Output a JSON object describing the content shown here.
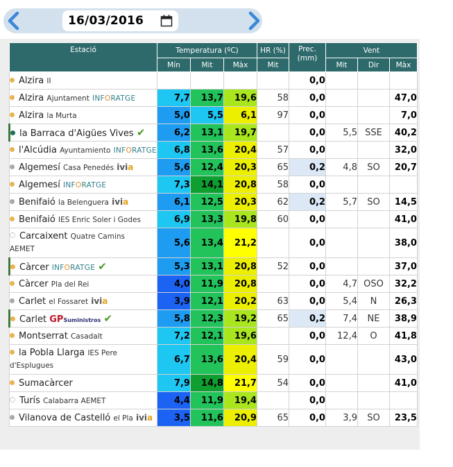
{
  "date": "16/03/2016",
  "header": {
    "estacio": "Estació",
    "temperatura": "Temperatura (ºC)",
    "hr": "HR (%)",
    "prec": "Prec.",
    "prec_unit": "(mm)",
    "vent": "Vent",
    "min": "Mín",
    "mit": "Mit",
    "max": "Màx",
    "hr_mit": "Mit",
    "vent_mit": "Mit",
    "vent_dir": "Dir",
    "vent_max": "Màx"
  },
  "colors": {
    "tmin_a": "#1ec6f2",
    "tmin_b": "#1e9cf2",
    "tmin_c": "#1c63f4",
    "tmit_a": "#22c35a",
    "tmit_b": "#0f9f30",
    "tmax_a": "#ffff00",
    "tmax_b": "#ecf000",
    "tmax_c": "#a9e61e",
    "header": "#2e6a6b"
  },
  "rows": [
    {
      "marker": "orange-dot",
      "name": "Alzira",
      "sub": "II",
      "brand": "",
      "chk": false,
      "hl": false,
      "tmin": "",
      "tmit": "",
      "tmax": "",
      "hr": "",
      "prec": "0,0",
      "pre_hi": false,
      "vmit": "",
      "vdir": "",
      "vmax": ""
    },
    {
      "marker": "orange-dot",
      "name": "Alzira",
      "sub": "Ajuntament",
      "brand": "inforatge",
      "chk": false,
      "hl": false,
      "tmin": "7,7",
      "tmit": "13,7",
      "tmax": "19,6",
      "hr": "58",
      "prec": "0,0",
      "pre_hi": false,
      "vmit": "",
      "vdir": "",
      "vmax": "47,0",
      "cmin": "a",
      "cmit": "a",
      "cmax": "c"
    },
    {
      "marker": "orange-dot",
      "name": "Alzira",
      "sub": "la Murta",
      "brand": "",
      "chk": false,
      "hl": false,
      "tmin": "5,0",
      "tmit": "5,5",
      "tmax": "6,1",
      "hr": "97",
      "prec": "0,0",
      "pre_hi": false,
      "vmit": "",
      "vdir": "",
      "vmax": "7,0",
      "cmin": "b",
      "cmit": "x",
      "cmax": "x"
    },
    {
      "marker": "teal-dot",
      "name": "la Barraca d'Aigües Vives",
      "sub": "",
      "brand": "",
      "chk": true,
      "hl": true,
      "tmin": "6,2",
      "tmit": "13,1",
      "tmax": "19,7",
      "hr": "",
      "prec": "0,0",
      "pre_hi": false,
      "vmit": "5,5",
      "vdir": "SSE",
      "vmax": "40,2",
      "cmin": "b",
      "cmit": "a",
      "cmax": "c"
    },
    {
      "marker": "orange-dot",
      "name": "l'Alcúdia",
      "sub": "Ayuntamiento",
      "brand": "inforatge",
      "chk": false,
      "hl": false,
      "tmin": "6,8",
      "tmit": "13,6",
      "tmax": "20,4",
      "hr": "57",
      "prec": "0,0",
      "pre_hi": false,
      "vmit": "",
      "vdir": "",
      "vmax": "32,0",
      "cmin": "a",
      "cmit": "a",
      "cmax": "b"
    },
    {
      "marker": "grey-dot",
      "name": "Algemesí",
      "sub": "Casa Penedés",
      "brand": "ivia",
      "chk": false,
      "hl": false,
      "tmin": "5,6",
      "tmit": "12,4",
      "tmax": "20,3",
      "hr": "65",
      "prec": "0,2",
      "pre_hi": true,
      "vmit": "4,8",
      "vdir": "SO",
      "vmax": "20,7",
      "cmin": "b",
      "cmit": "a",
      "cmax": "b"
    },
    {
      "marker": "orange-dot",
      "name": "Algemesí",
      "sub": "",
      "brand": "inforatge",
      "chk": false,
      "hl": false,
      "tmin": "7,3",
      "tmit": "14,1",
      "tmax": "20,8",
      "hr": "58",
      "prec": "0,0",
      "pre_hi": false,
      "vmit": "",
      "vdir": "",
      "vmax": "",
      "cmin": "a",
      "cmit": "b",
      "cmax": "b"
    },
    {
      "marker": "grey-dot",
      "name": "Benifaió",
      "sub": "la Belenguera",
      "brand": "ivia",
      "chk": false,
      "hl": false,
      "tmin": "6,1",
      "tmit": "12,5",
      "tmax": "20,3",
      "hr": "62",
      "prec": "0,2",
      "pre_hi": true,
      "vmit": "5,7",
      "vdir": "SO",
      "vmax": "14,5",
      "cmin": "b",
      "cmit": "a",
      "cmax": "b"
    },
    {
      "marker": "orange-dot",
      "name": "Benifaió",
      "sub": "IES Enric Soler i Godes",
      "brand": "",
      "chk": false,
      "hl": false,
      "tmin": "6,9",
      "tmit": "13,3",
      "tmax": "19,8",
      "hr": "60",
      "prec": "0,0",
      "pre_hi": false,
      "vmit": "",
      "vdir": "",
      "vmax": "41,0",
      "cmin": "a",
      "cmit": "a",
      "cmax": "c"
    },
    {
      "marker": "empty-dot",
      "name": "Carcaixent",
      "sub": "Quatre Camins",
      "sub2": "AEMET",
      "brand": "",
      "chk": false,
      "hl": false,
      "wrap": true,
      "tmin": "5,6",
      "tmit": "13,4",
      "tmax": "21,2",
      "hr": "",
      "prec": "0,0",
      "pre_hi": false,
      "vmit": "",
      "vdir": "",
      "vmax": "38,0",
      "cmin": "b",
      "cmit": "a",
      "cmax": "a"
    },
    {
      "marker": "orange-dot",
      "name": "Càrcer",
      "sub": "",
      "brand": "inforatge",
      "chk": true,
      "hl": true,
      "tmin": "5,3",
      "tmit": "13,1",
      "tmax": "20,8",
      "hr": "52",
      "prec": "0,0",
      "pre_hi": false,
      "vmit": "",
      "vdir": "",
      "vmax": "37,0",
      "cmin": "b",
      "cmit": "a",
      "cmax": "b"
    },
    {
      "marker": "orange-dot",
      "name": "Càrcer",
      "sub": "Pla del Rei",
      "brand": "",
      "chk": false,
      "hl": false,
      "tmin": "4,0",
      "tmit": "11,9",
      "tmax": "20,8",
      "hr": "",
      "prec": "0,0",
      "pre_hi": false,
      "vmit": "4,7",
      "vdir": "OSO",
      "vmax": "32,2",
      "cmin": "c",
      "cmit": "a",
      "cmax": "b"
    },
    {
      "marker": "grey-dot",
      "name": "Carlet",
      "sub": "el Fossaret",
      "brand": "ivia",
      "chk": false,
      "hl": false,
      "tmin": "3,9",
      "tmit": "12,1",
      "tmax": "20,2",
      "hr": "63",
      "prec": "0,0",
      "pre_hi": false,
      "vmit": "5,4",
      "vdir": "N",
      "vmax": "26,3",
      "cmin": "c",
      "cmit": "a",
      "cmax": "b"
    },
    {
      "marker": "orange-dot",
      "name": "Carlet",
      "sub": "",
      "brand": "gp",
      "chk": true,
      "hl": true,
      "tmin": "5,8",
      "tmit": "12,3",
      "tmax": "19,2",
      "hr": "65",
      "prec": "0,2",
      "pre_hi": true,
      "vmit": "7,4",
      "vdir": "NE",
      "vmax": "38,9",
      "cmin": "b",
      "cmit": "a",
      "cmax": "c"
    },
    {
      "marker": "orange-dot",
      "name": "Montserrat",
      "sub": "Casadalt",
      "brand": "",
      "chk": false,
      "hl": false,
      "tmin": "7,2",
      "tmit": "12,1",
      "tmax": "19,6",
      "hr": "",
      "prec": "0,0",
      "pre_hi": false,
      "vmit": "12,4",
      "vdir": "O",
      "vmax": "41,8",
      "cmin": "a",
      "cmit": "a",
      "cmax": "c"
    },
    {
      "marker": "orange-dot",
      "name": "la Pobla Llarga",
      "sub": "IES Pere",
      "sub2": "d'Esplugues",
      "brand": "",
      "chk": false,
      "hl": false,
      "wrap": true,
      "tmin": "6,7",
      "tmit": "13,6",
      "tmax": "20,4",
      "hr": "59",
      "prec": "0,0",
      "pre_hi": false,
      "vmit": "",
      "vdir": "",
      "vmax": "43,0",
      "cmin": "a",
      "cmit": "a",
      "cmax": "b"
    },
    {
      "marker": "orange-dot",
      "name": "Sumacàrcer",
      "sub": "",
      "brand": "",
      "chk": false,
      "hl": false,
      "tmin": "7,9",
      "tmit": "14,8",
      "tmax": "21,7",
      "hr": "54",
      "prec": "0,0",
      "pre_hi": false,
      "vmit": "",
      "vdir": "",
      "vmax": "41,0",
      "cmin": "a",
      "cmit": "b",
      "cmax": "a"
    },
    {
      "marker": "empty-dot",
      "name": "Turís",
      "sub": "Calabarra AEMET",
      "brand": "",
      "chk": false,
      "hl": false,
      "tmin": "4,4",
      "tmit": "11,9",
      "tmax": "19,4",
      "hr": "",
      "prec": "0,0",
      "pre_hi": false,
      "vmit": "",
      "vdir": "",
      "vmax": "",
      "cmin": "c",
      "cmit": "a",
      "cmax": "c"
    },
    {
      "marker": "grey-dot",
      "name": "Vilanova de Castelló",
      "sub": "el Pla",
      "brand": "ivia",
      "chk": false,
      "hl": false,
      "tmin": "3,5",
      "tmit": "11,6",
      "tmax": "20,9",
      "hr": "65",
      "prec": "0,0",
      "pre_hi": false,
      "vmit": "3,9",
      "vdir": "SO",
      "vmax": "23,5",
      "cmin": "c",
      "cmit": "a",
      "cmax": "b"
    }
  ]
}
